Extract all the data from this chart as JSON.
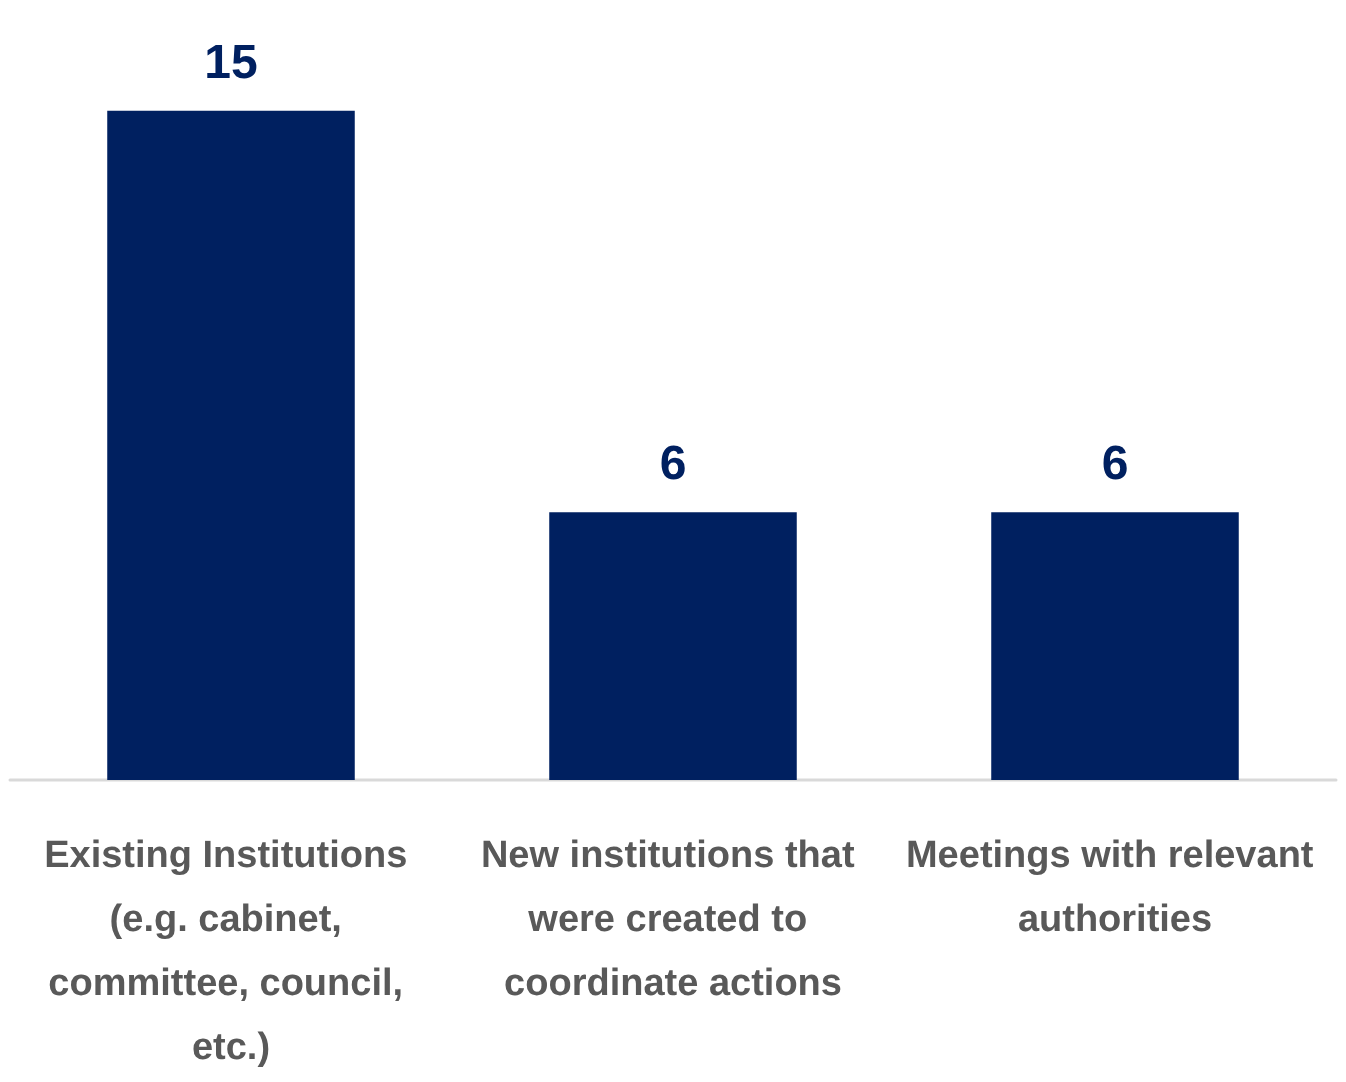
{
  "chart_data": {
    "type": "bar",
    "categories": [
      "Existing Institutions (e.g. cabinet, committee, council, etc.)",
      "New institutions that were created to coordinate actions",
      "Meetings with relevant authorities"
    ],
    "values": [
      15,
      6,
      6
    ],
    "color": "#002060",
    "data_labels": true
  }
}
